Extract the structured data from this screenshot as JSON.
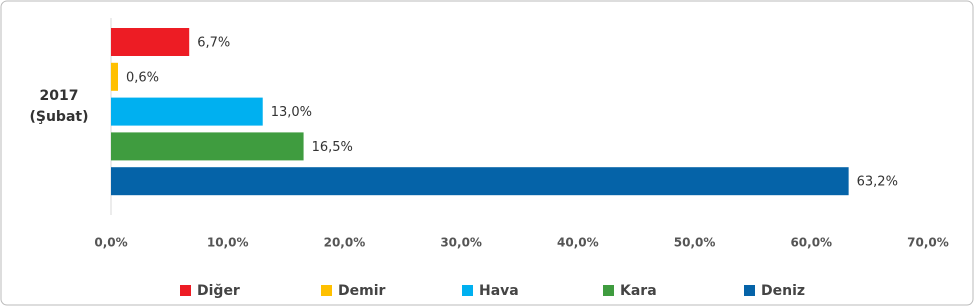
{
  "chart_data": {
    "type": "hbar",
    "categories": [
      "2017 (Şubat)"
    ],
    "series": [
      {
        "name": "Diğer",
        "color": "#ed1c24",
        "values": [
          6.7
        ],
        "value_labels": [
          "6,7%"
        ]
      },
      {
        "name": "Demir",
        "color": "#ffc000",
        "values": [
          0.6
        ],
        "value_labels": [
          "0,6%"
        ]
      },
      {
        "name": "Hava",
        "color": "#00b0f0",
        "values": [
          13.0
        ],
        "value_labels": [
          "13,0%"
        ]
      },
      {
        "name": "Kara",
        "color": "#3f9c3f",
        "values": [
          16.5
        ],
        "value_labels": [
          "16,5%"
        ]
      },
      {
        "name": "Deniz",
        "color": "#0563a8",
        "values": [
          63.2
        ],
        "value_labels": [
          "63,2%"
        ]
      }
    ],
    "xlim": [
      0,
      70
    ],
    "xticks": [
      {
        "value": 0,
        "label": "0,0%"
      },
      {
        "value": 10,
        "label": "10,0%"
      },
      {
        "value": 20,
        "label": "20,0%"
      },
      {
        "value": 30,
        "label": "30,0%"
      },
      {
        "value": 40,
        "label": "40,0%"
      },
      {
        "value": 50,
        "label": "50,0%"
      },
      {
        "value": 60,
        "label": "60,0%"
      },
      {
        "value": 70,
        "label": "70,0%"
      }
    ],
    "grid": false,
    "legend": "bottom"
  }
}
